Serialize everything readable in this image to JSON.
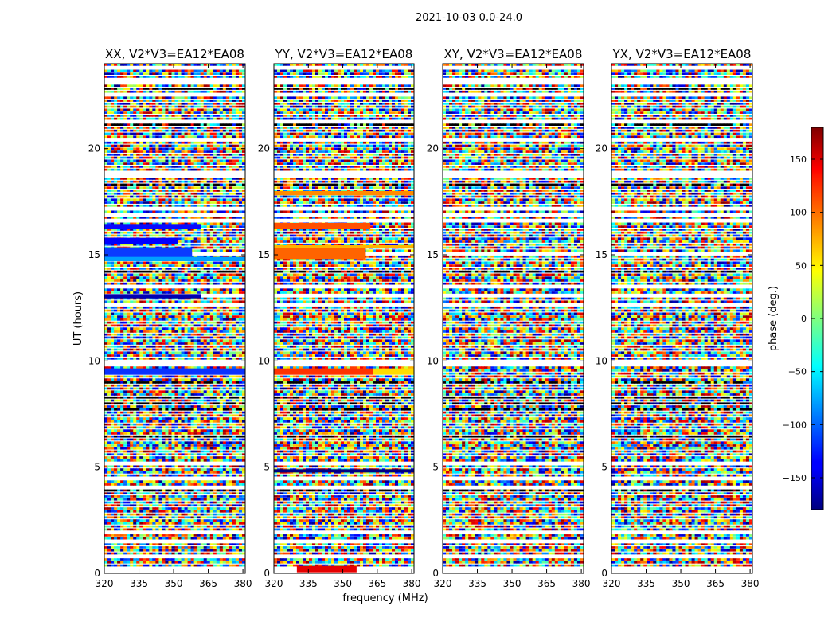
{
  "figure": {
    "suptitle": "2021-10-03 0.0-24.0"
  },
  "chart_data": {
    "type": "heatmap",
    "xlabel": "frequency (MHz)",
    "ylabel": "UT (hours)",
    "xlim": [
      320,
      381
    ],
    "ylim": [
      0,
      24
    ],
    "xticks": [
      320,
      335,
      350,
      365,
      380
    ],
    "yticks": [
      0,
      5,
      10,
      15,
      20
    ],
    "panels": [
      {
        "title": "XX, V2*V3=EA12*EA08",
        "features": [
          {
            "t0": 15.5,
            "t1": 15.8,
            "f0": 320,
            "f1": 352,
            "color": "#0000ff"
          },
          {
            "t0": 14.85,
            "t1": 15.35,
            "f0": 320,
            "f1": 358,
            "color": "#0a3cff"
          },
          {
            "t0": 14.7,
            "t1": 14.9,
            "f0": 320,
            "f1": 381,
            "color": "#00a0ff"
          },
          {
            "t0": 16.2,
            "t1": 16.45,
            "f0": 320,
            "f1": 362,
            "color": "#0a0aff"
          },
          {
            "t0": 9.35,
            "t1": 9.65,
            "f0": 320,
            "f1": 381,
            "color": "#0a32ff"
          },
          {
            "t0": 12.95,
            "t1": 13.15,
            "f0": 320,
            "f1": 362,
            "color": "#0000b0"
          }
        ]
      },
      {
        "title": "YY, V2*V3=EA12*EA08",
        "features": [
          {
            "t0": 14.8,
            "t1": 15.3,
            "f0": 320,
            "f1": 360,
            "color": "#ff6400"
          },
          {
            "t0": 15.3,
            "t1": 15.45,
            "f0": 320,
            "f1": 381,
            "color": "#ffb400"
          },
          {
            "t0": 9.35,
            "t1": 9.65,
            "f0": 320,
            "f1": 363,
            "color": "#ff3200"
          },
          {
            "t0": 9.35,
            "t1": 9.65,
            "f0": 363,
            "f1": 381,
            "color": "#ffdc00"
          },
          {
            "t0": 16.2,
            "t1": 16.5,
            "f0": 320,
            "f1": 362,
            "color": "#ff5000"
          },
          {
            "t0": 17.8,
            "t1": 18.0,
            "f0": 320,
            "f1": 381,
            "color": "#ff8c00"
          },
          {
            "t0": 4.75,
            "t1": 4.9,
            "f0": 320,
            "f1": 381,
            "color": "#000080"
          },
          {
            "t0": 0.05,
            "t1": 0.35,
            "f0": 330,
            "f1": 356,
            "color": "#e60000"
          }
        ]
      },
      {
        "title": "XY, V2*V3=EA12*EA08",
        "features": []
      },
      {
        "title": "YX, V2*V3=EA12*EA08",
        "features": []
      }
    ],
    "colorbar": {
      "label": "phase (deg.)",
      "range": [
        -180,
        180
      ],
      "ticks": [
        150,
        100,
        50,
        0,
        -50,
        -100,
        -150
      ],
      "tick_labels": [
        "150",
        "100",
        "50",
        "0",
        "−50",
        "−100",
        "−150"
      ],
      "colormap": "jet"
    }
  }
}
